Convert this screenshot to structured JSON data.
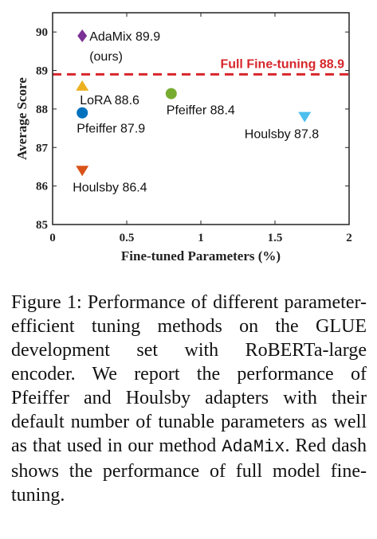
{
  "chart_data": {
    "type": "scatter",
    "xlabel": "Fine-tuned Parameters (%)",
    "ylabel": "Average Score",
    "xlim": [
      0,
      2
    ],
    "ylim": [
      85,
      90.5
    ],
    "x_ticks": [
      0,
      0.5,
      1,
      1.5,
      2
    ],
    "x_tick_labels": [
      "0",
      "0.5",
      "1",
      "1.5",
      "2"
    ],
    "y_ticks": [
      85,
      86,
      87,
      88,
      89,
      90
    ],
    "y_tick_labels": [
      "85",
      "86",
      "87",
      "88",
      "89",
      "90"
    ],
    "grid": false,
    "reference_line": {
      "y": 88.9,
      "label": "Full Fine-tuning 88.9",
      "color": "#d7262b",
      "style": "dashed"
    },
    "points": [
      {
        "id": "adamix",
        "x": 0.2,
        "y": 89.9,
        "marker": "diamond",
        "color": "#7b3294",
        "label": "AdaMix 89.9",
        "label2": "(ours)"
      },
      {
        "id": "lora",
        "x": 0.2,
        "y": 88.6,
        "marker": "triangle-up",
        "color": "#edb120",
        "label": "LoRA 88.6"
      },
      {
        "id": "pfeiffer-small",
        "x": 0.2,
        "y": 87.9,
        "marker": "circle",
        "color": "#0072bd",
        "label": "Pfeiffer 87.9"
      },
      {
        "id": "pfeiffer-default",
        "x": 0.8,
        "y": 88.4,
        "marker": "circle",
        "color": "#77ac30",
        "label": "Pfeiffer 88.4"
      },
      {
        "id": "houlsby-default",
        "x": 1.7,
        "y": 87.8,
        "marker": "triangle-down",
        "color": "#4dbeee",
        "label": "Houlsby 87.8"
      },
      {
        "id": "houlsby-small",
        "x": 0.2,
        "y": 86.4,
        "marker": "triangle-down",
        "color": "#d95319",
        "label": "Houlsby 86.4"
      }
    ]
  },
  "caption": {
    "prefix": "Figure 1:  Performance of different parameter-efficient tuning methods on the GLUE development set with RoBERTa-large encoder. We report the performance of Pfeiffer and Houlsby adapters with their default number of tunable parameters as well as that used in our method ",
    "method": "AdaMix",
    "suffix": ".  Red dash shows the performance of full model fine-tuning."
  }
}
